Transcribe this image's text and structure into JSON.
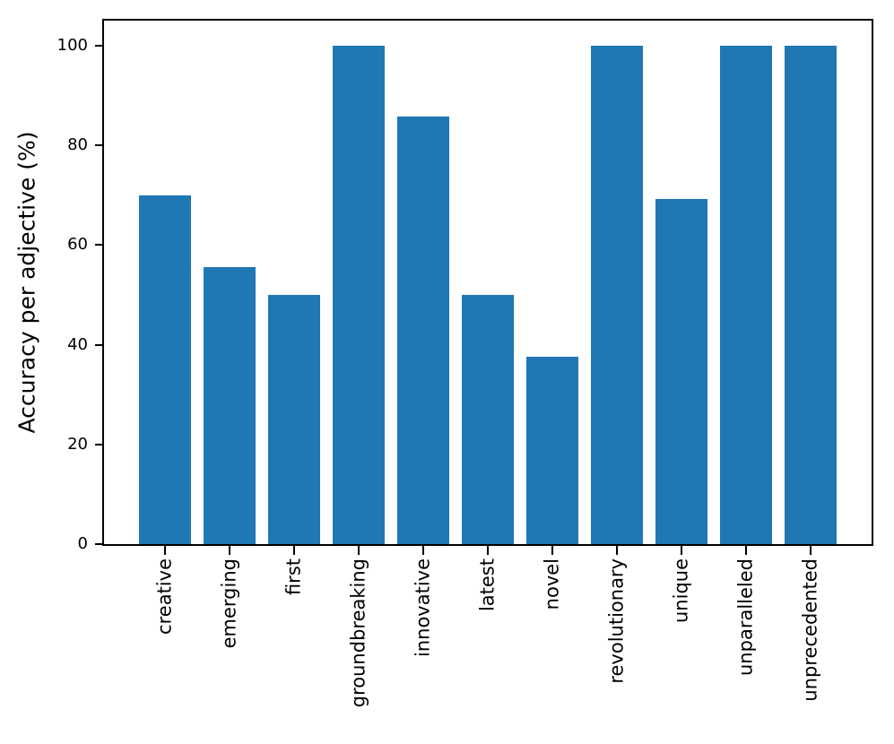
{
  "figure": {
    "background": "#ffffff"
  },
  "chart_data": {
    "type": "bar",
    "title": "",
    "categories": [
      "creative",
      "emerging",
      "first",
      "groundbreaking",
      "innovative",
      "latest",
      "novel",
      "revolutionary",
      "unique",
      "unparalleled",
      "unprecedented"
    ],
    "values": [
      70,
      55.6,
      50,
      100,
      85.7,
      50,
      37.5,
      100,
      69.2,
      100,
      100
    ],
    "xlabel": "",
    "ylabel": "Accuracy per adjective (%)",
    "yticks": [
      0,
      20,
      40,
      60,
      80,
      100
    ],
    "ylim": [
      0,
      105
    ],
    "x_tick_rotation": 90,
    "grid": false,
    "legend": null,
    "bar_color": "#1f77b4",
    "axis_color": "#000000",
    "text_color": "#000000"
  }
}
